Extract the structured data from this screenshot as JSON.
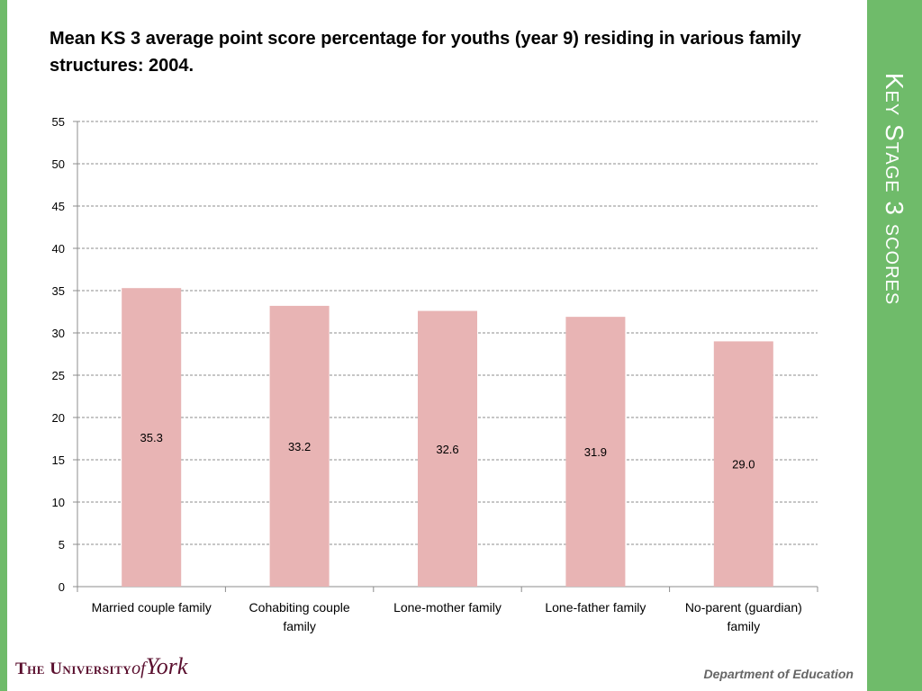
{
  "slide": {
    "title": "Mean KS 3 average point score percentage for youths (year 9) residing in various family structures: 2004.",
    "side_title": "Key Stage 3 scores",
    "footer_left_caps": "The University",
    "footer_left_of": "of",
    "footer_left_york": "York",
    "footer_right": "Department of Education",
    "accent_color": "#6fbb6a"
  },
  "chart_data": {
    "type": "bar",
    "title": "Mean KS 3 average point score percentage for youths (year 9) residing in various family structures: 2004.",
    "categories": [
      [
        "Married couple family"
      ],
      [
        "Cohabiting couple",
        "family"
      ],
      [
        "Lone-mother family"
      ],
      [
        "Lone-father family"
      ],
      [
        "No-parent (guardian)",
        "family"
      ]
    ],
    "values": [
      35.3,
      33.2,
      32.6,
      31.9,
      29.0
    ],
    "data_labels": [
      "35.3",
      "33.2",
      "32.6",
      "31.9",
      "29.0"
    ],
    "xlabel": "",
    "ylabel": "",
    "ylim": [
      0,
      55
    ],
    "yticks": [
      0,
      5,
      10,
      15,
      20,
      25,
      30,
      35,
      40,
      45,
      50,
      55
    ],
    "grid": true,
    "legend": "none",
    "bar_color": "#e8b4b4"
  }
}
